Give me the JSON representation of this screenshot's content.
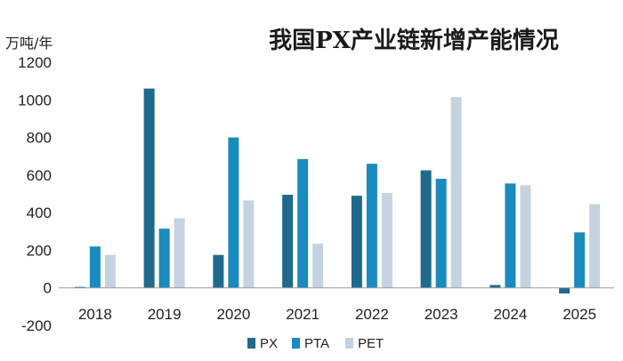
{
  "chart_data": {
    "type": "bar",
    "title": "我国PX产业链新增产能情况",
    "ylabel": "万吨/年",
    "xlabel": "",
    "categories": [
      "2018",
      "2019",
      "2020",
      "2021",
      "2022",
      "2023",
      "2024",
      "2025"
    ],
    "series": [
      {
        "name": "PX",
        "color": "#1f6a8c",
        "values": [
          5,
          1060,
          175,
          495,
          490,
          625,
          15,
          -30
        ]
      },
      {
        "name": "PTA",
        "color": "#1a8bbf",
        "values": [
          220,
          315,
          800,
          685,
          660,
          580,
          555,
          295
        ]
      },
      {
        "name": "PET",
        "color": "#c4d3df",
        "values": [
          175,
          370,
          465,
          235,
          505,
          1015,
          545,
          445
        ]
      }
    ],
    "ylim": [
      -200,
      1200
    ],
    "yticks": [
      1200,
      1000,
      800,
      600,
      400,
      200,
      0,
      -200
    ],
    "ytick_labels": [
      "1200",
      "1000",
      "800",
      "600",
      "400",
      "200",
      "0",
      "-200"
    ],
    "grid": false,
    "legend": "bottom-center"
  }
}
